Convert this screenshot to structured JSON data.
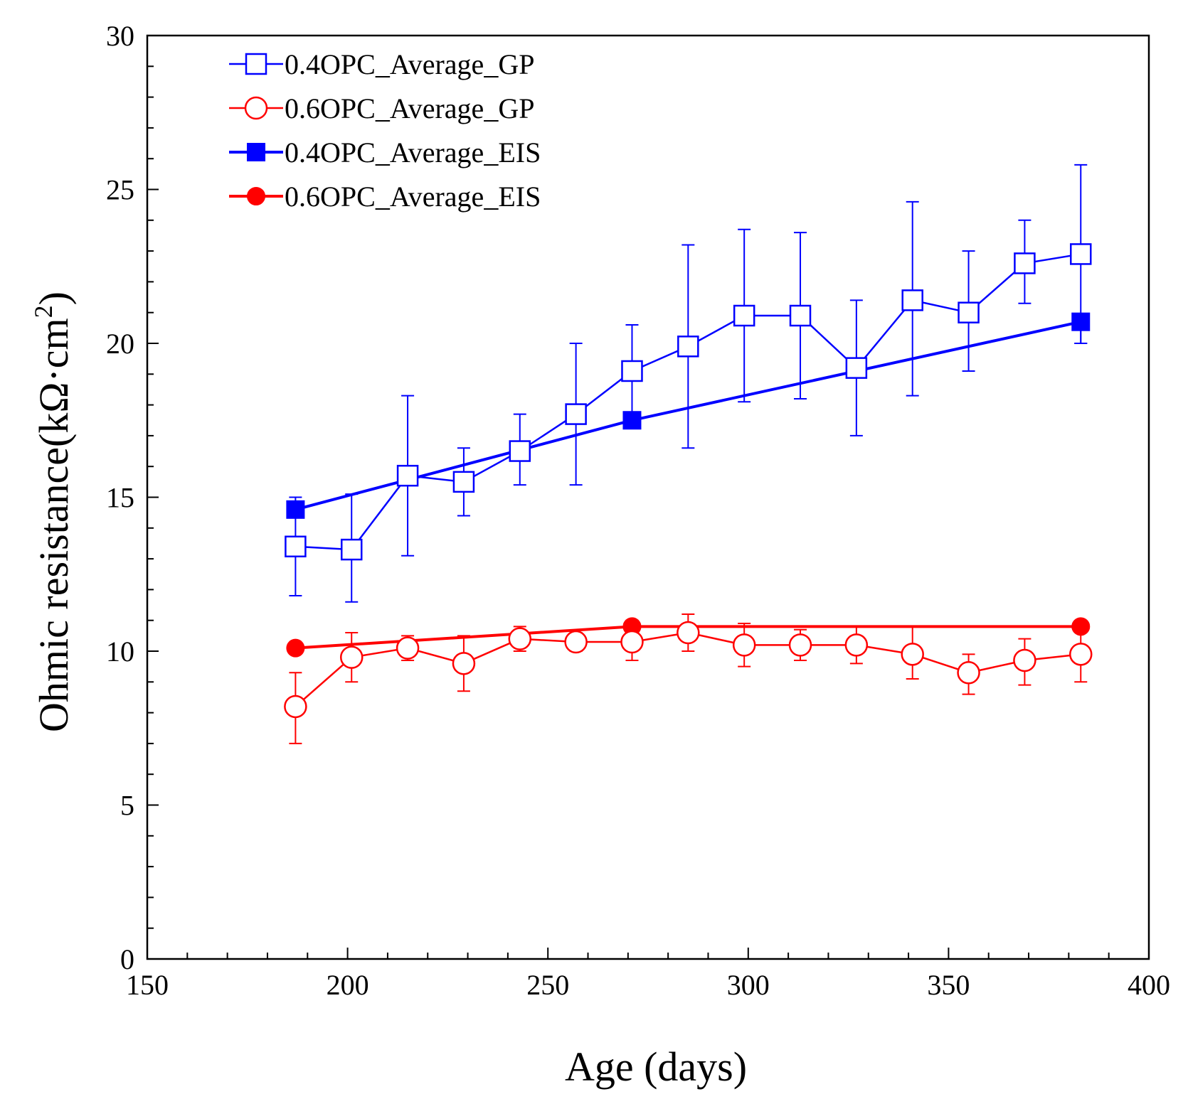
{
  "chart_data": {
    "type": "line",
    "title": "",
    "xlabel": "Age (days)",
    "ylabel_main": "Ohmic resistance(kΩ·cm",
    "ylabel_sup": "2",
    "ylabel_close": ")",
    "xlim": [
      150,
      400
    ],
    "ylim": [
      0,
      30
    ],
    "xticks": [
      150,
      200,
      250,
      300,
      350,
      400
    ],
    "yticks": [
      0,
      5,
      10,
      15,
      20,
      25,
      30
    ],
    "grid": false,
    "legend_position": "top-left",
    "series": [
      {
        "name": "0.4OPC_Average_GP",
        "color": "#0000ff",
        "marker": "square-open",
        "x": [
          187,
          201,
          215,
          229,
          243,
          257,
          271,
          285,
          299,
          313,
          327,
          341,
          355,
          369,
          383
        ],
        "y": [
          13.4,
          13.3,
          15.7,
          15.5,
          16.5,
          17.7,
          19.1,
          19.9,
          20.9,
          20.9,
          19.2,
          21.4,
          21.0,
          22.6,
          22.9
        ],
        "err_low": [
          11.8,
          11.6,
          13.1,
          14.4,
          15.4,
          15.4,
          17.5,
          16.6,
          18.1,
          18.2,
          17.0,
          18.3,
          19.1,
          21.3,
          20.0
        ],
        "err_high": [
          15.0,
          15.1,
          18.3,
          16.6,
          17.7,
          20.0,
          20.6,
          23.2,
          23.7,
          23.6,
          21.4,
          24.6,
          23.0,
          24.0,
          25.8
        ]
      },
      {
        "name": "0.6OPC_Average_GP",
        "color": "#ff0000",
        "marker": "circle-open",
        "x": [
          187,
          201,
          215,
          229,
          243,
          257,
          271,
          285,
          299,
          313,
          327,
          341,
          355,
          369,
          383
        ],
        "y": [
          8.2,
          9.8,
          10.1,
          9.6,
          10.4,
          10.3,
          10.3,
          10.6,
          10.2,
          10.2,
          10.2,
          9.9,
          9.3,
          9.7,
          9.9
        ],
        "err_low": [
          7.0,
          9.0,
          9.7,
          8.7,
          10.0,
          10.0,
          9.7,
          10.0,
          9.5,
          9.7,
          9.6,
          9.1,
          8.6,
          8.9,
          9.0
        ],
        "err_high": [
          9.3,
          10.6,
          10.5,
          10.5,
          10.8,
          10.6,
          11.0,
          11.2,
          10.9,
          10.7,
          10.8,
          10.8,
          9.9,
          10.4,
          10.8
        ]
      },
      {
        "name": "0.4OPC_Average_EIS",
        "color": "#0000ff",
        "marker": "square-filled",
        "x": [
          187,
          271,
          383
        ],
        "y": [
          14.6,
          17.5,
          20.7
        ],
        "err_low": [
          null,
          null,
          20.0
        ],
        "err_high": [
          null,
          null,
          null
        ]
      },
      {
        "name": "0.6OPC_Average_EIS",
        "color": "#ff0000",
        "marker": "circle-filled",
        "x": [
          187,
          271,
          383
        ],
        "y": [
          10.1,
          10.8,
          10.8
        ],
        "err_low": [
          null,
          null,
          null
        ],
        "err_high": [
          null,
          null,
          null
        ]
      }
    ]
  }
}
